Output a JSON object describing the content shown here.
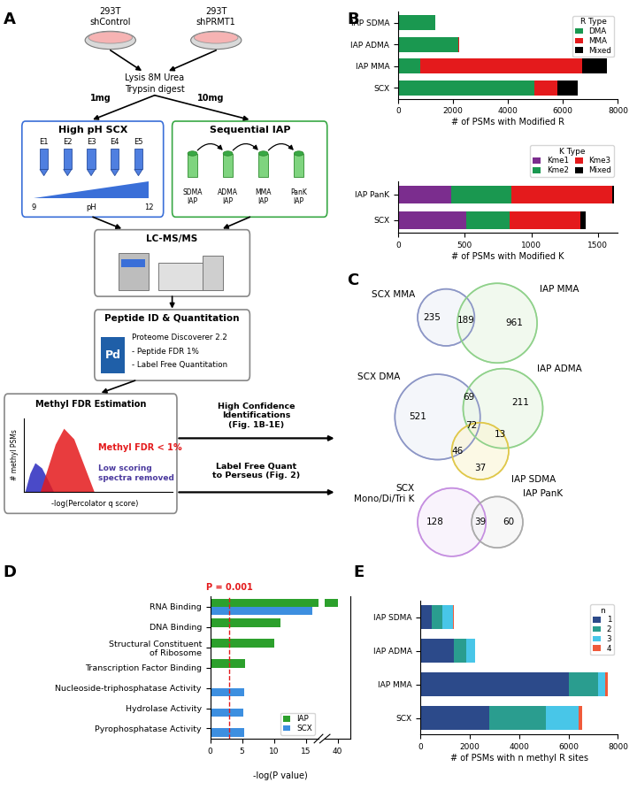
{
  "panel_labels": [
    "A",
    "B",
    "C",
    "D",
    "E"
  ],
  "diagram": {
    "cells": [
      "293T\nshControl",
      "293T\nshPRMT1"
    ],
    "lysis": [
      "Lysis 8M Urea",
      "Trypsin digest"
    ],
    "amounts": [
      "1mg",
      "10mg"
    ],
    "scx": {
      "title": "High pH SCX",
      "fractions": [
        "E1",
        "E2",
        "E3",
        "E4",
        "E5"
      ],
      "ph_low": "9",
      "ph_label": "pH",
      "ph_high": "12"
    },
    "iap": {
      "title": "Sequential IAP",
      "steps": [
        "SDMA\nIAP",
        "ADMA\nIAP",
        "MMA\nIAP",
        "PanK\nIAP"
      ]
    },
    "ms": {
      "title": "LC-MS/MS"
    },
    "pd": {
      "title": "Peptide ID & Quantitation",
      "logo": "Pd",
      "lines": [
        "Proteome Discoverer 2.2",
        "- Peptide FDR 1%",
        "- Label Free Quantitation"
      ]
    },
    "fdr": {
      "title": "Methyl FDR Estimation",
      "y_label": "# methyl PSMs",
      "x_label": "-log(Percolator q score)",
      "pass": "Methyl FDR < 1%",
      "removed": "Low scoring\nspectra removed"
    },
    "outputs": [
      "High Confidence\nIdentifications\n(Fig. 1B-1E)",
      "Label Free Quant\nto Perseus (Fig. 2)"
    ]
  },
  "chart_data": [
    {
      "type": "bar",
      "orientation": "horizontal",
      "stacked": true,
      "categories": [
        "IAP SDMA",
        "IAP ADMA",
        "IAP MMA",
        "SCX"
      ],
      "series": [
        {
          "name": "DMA",
          "color": "#1a9850",
          "values": [
            1350,
            2200,
            800,
            4950
          ]
        },
        {
          "name": "MMA",
          "color": "#e41a1c",
          "values": [
            0,
            30,
            5900,
            850
          ]
        },
        {
          "name": "Mixed",
          "color": "#000000",
          "values": [
            0,
            0,
            900,
            750
          ]
        }
      ],
      "xlabel": "# of PSMs with Modified R",
      "legend_title": "R Type",
      "legend": "upper right",
      "xlim": [
        0,
        8000
      ],
      "xticks": [
        0,
        2000,
        4000,
        6000,
        8000
      ]
    },
    {
      "type": "bar",
      "orientation": "horizontal",
      "stacked": true,
      "categories": [
        "IAP PanK",
        "SCX"
      ],
      "series": [
        {
          "name": "Kme1",
          "color": "#7b2d8e",
          "values": [
            400,
            510
          ]
        },
        {
          "name": "Kme2",
          "color": "#1a9850",
          "values": [
            450,
            330
          ]
        },
        {
          "name": "Kme3",
          "color": "#e41a1c",
          "values": [
            760,
            530
          ]
        },
        {
          "name": "Mixed",
          "color": "#000000",
          "values": [
            10,
            40
          ]
        }
      ],
      "xlabel": "# of PSMs with Modified K",
      "legend_title": "K Type",
      "legend": "lower right",
      "xlim": [
        0,
        1650
      ],
      "xticks": [
        0,
        500,
        1000,
        1500
      ]
    },
    {
      "type": "bar",
      "orientation": "horizontal",
      "stacked": false,
      "categories": [
        "RNA Binding",
        "DNA Binding",
        "Structural Constituent\nof Ribosome",
        "Transcription Factor Binding",
        "Nucleoside-triphosphatase Activity",
        "Hydrolase Activity",
        "Pyrophosphatase Activity"
      ],
      "series": [
        {
          "name": "IAP",
          "color": "#2ca02c",
          "values": [
            40,
            11,
            10,
            5.5,
            null,
            null,
            null
          ]
        },
        {
          "name": "SCX",
          "color": "#3d8fe0",
          "values": [
            16,
            null,
            null,
            null,
            5.3,
            5.2,
            5.3
          ]
        }
      ],
      "xlabel": "-log(P value)",
      "legend": "lower right",
      "xlim": [
        [
          0,
          17
        ],
        [
          38,
          42
        ]
      ],
      "xticks": [
        [
          0,
          5,
          10,
          15
        ],
        [
          40
        ]
      ],
      "annotations": [
        {
          "x": 3,
          "text": "P = 0.001",
          "color": "#e41a1c",
          "line_style": "dashed"
        }
      ]
    },
    {
      "type": "bar",
      "orientation": "horizontal",
      "stacked": true,
      "categories": [
        "IAP SDMA",
        "IAP ADMA",
        "IAP MMA",
        "SCX"
      ],
      "series": [
        {
          "name": "1",
          "color": "#2c4a8a",
          "values": [
            450,
            1350,
            6000,
            2800
          ]
        },
        {
          "name": "2",
          "color": "#2a9d8f",
          "values": [
            450,
            500,
            1200,
            2300
          ]
        },
        {
          "name": "3",
          "color": "#48c6e8",
          "values": [
            430,
            360,
            300,
            1300
          ]
        },
        {
          "name": "4",
          "color": "#f05a3a",
          "values": [
            20,
            20,
            100,
            150
          ]
        }
      ],
      "xlabel": "# of PSMs with n methyl R sites",
      "legend_title": "n",
      "legend": "upper right",
      "xlim": [
        0,
        8000
      ],
      "xticks": [
        0,
        2000,
        4000,
        6000,
        8000
      ]
    }
  ],
  "venn": [
    {
      "sets": [
        "SCX MMA",
        "IAP MMA"
      ],
      "regions": [
        {
          "in": [
            "SCX MMA"
          ],
          "count": 235
        },
        {
          "in": [
            "SCX MMA",
            "IAP MMA"
          ],
          "count": 189
        },
        {
          "in": [
            "IAP MMA"
          ],
          "count": 961
        }
      ]
    },
    {
      "sets": [
        "SCX DMA",
        "IAP ADMA",
        "IAP SDMA"
      ],
      "regions": [
        {
          "in": [
            "SCX DMA"
          ],
          "count": 521
        },
        {
          "in": [
            "SCX DMA",
            "IAP ADMA"
          ],
          "count": 69
        },
        {
          "in": [
            "IAP ADMA"
          ],
          "count": 211
        },
        {
          "in": [
            "SCX DMA",
            "IAP ADMA",
            "IAP SDMA"
          ],
          "count": 72
        },
        {
          "in": [
            "SCX DMA",
            "IAP SDMA"
          ],
          "count": 46
        },
        {
          "in": [
            "IAP ADMA",
            "IAP SDMA"
          ],
          "count": 13
        },
        {
          "in": [
            "IAP SDMA"
          ],
          "count": 37
        }
      ]
    },
    {
      "sets": [
        "SCX\nMono/Di/Tri K",
        "IAP PanK"
      ],
      "regions": [
        {
          "in": [
            "SCX\nMono/Di/Tri K"
          ],
          "count": 128
        },
        {
          "in": [
            "SCX\nMono/Di/Tri K",
            "IAP PanK"
          ],
          "count": 39
        },
        {
          "in": [
            "IAP PanK"
          ],
          "count": 60
        }
      ]
    }
  ]
}
